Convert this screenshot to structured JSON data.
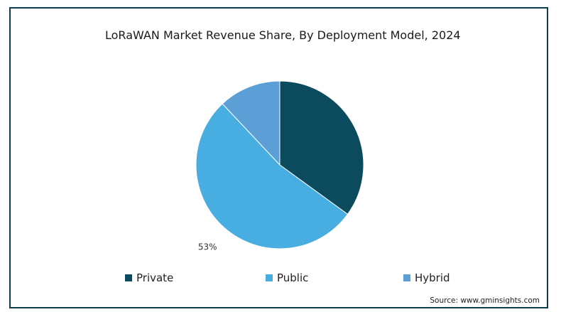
{
  "chart_data": {
    "type": "pie",
    "title": "LoRaWAN Market Revenue Share, By Deployment Model, 2024",
    "categories": [
      "Private",
      "Public",
      "Hybrid"
    ],
    "values": [
      35,
      53,
      12
    ],
    "colors": [
      "#0c4a5e",
      "#48ade0",
      "#5b9fd6"
    ],
    "data_labels": [
      "",
      "53%",
      ""
    ],
    "start_angle_deg": 0,
    "direction": "clockwise",
    "legend": "bottom"
  },
  "source": "Source: www.gminsights.com"
}
